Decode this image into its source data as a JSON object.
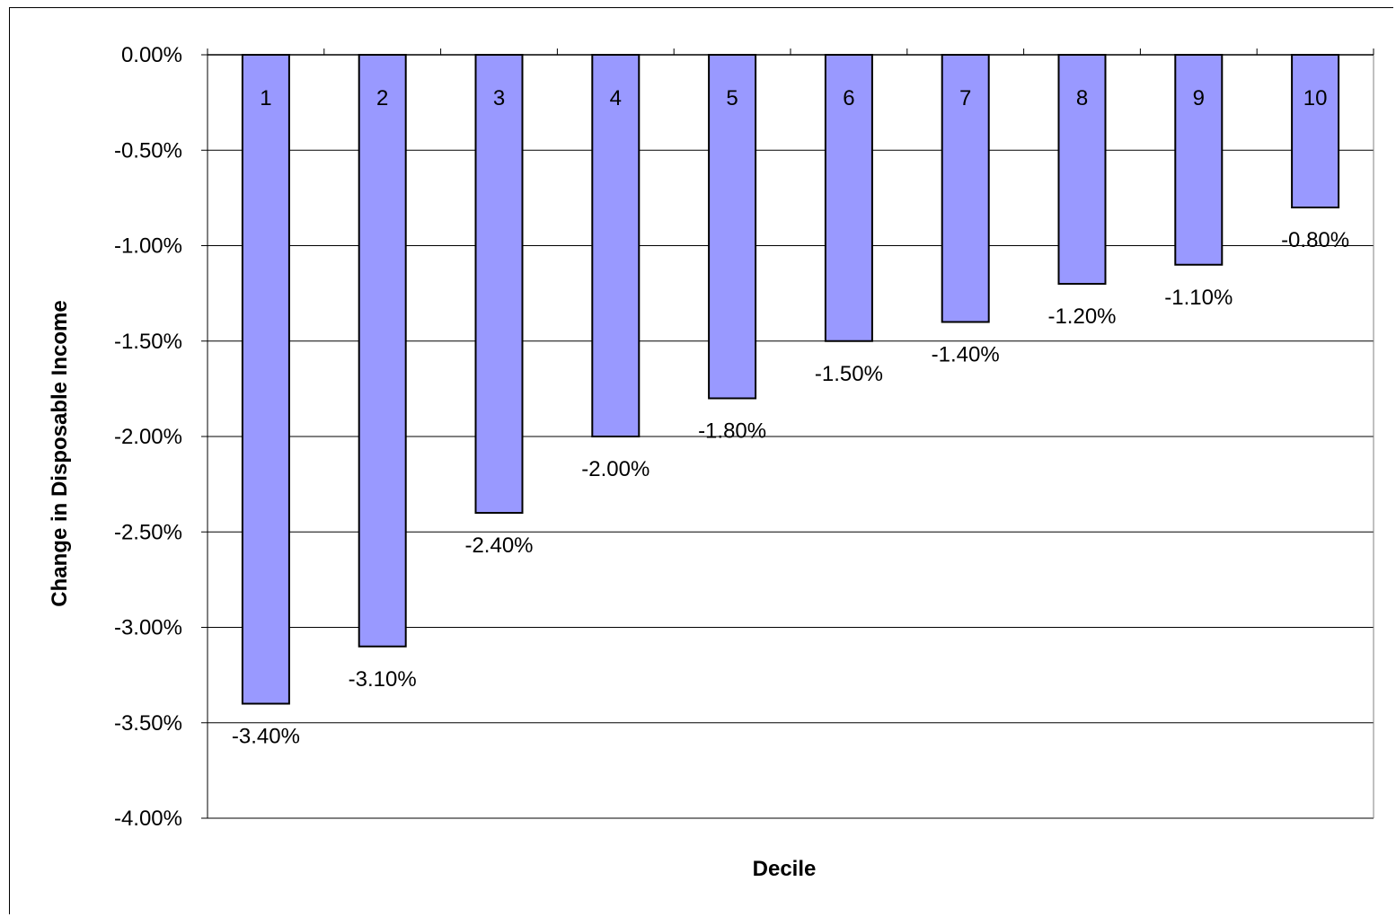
{
  "chart_data": {
    "type": "bar",
    "categories": [
      "1",
      "2",
      "3",
      "4",
      "5",
      "6",
      "7",
      "8",
      "9",
      "10"
    ],
    "values": [
      -3.4,
      -3.1,
      -2.4,
      -2.0,
      -1.8,
      -1.5,
      -1.4,
      -1.2,
      -1.1,
      -0.8
    ],
    "data_labels": [
      "-3.40%",
      "-3.10%",
      "-2.40%",
      "-2.00%",
      "-1.80%",
      "-1.50%",
      "-1.40%",
      "-1.20%",
      "-1.10%",
      "-0.80%"
    ],
    "xlabel": "Decile",
    "ylabel": "Change in Disposable Income",
    "ylim": [
      -4.0,
      0.0
    ],
    "yticks": [
      0.0,
      -0.5,
      -1.0,
      -1.5,
      -2.0,
      -2.5,
      -3.0,
      -3.5,
      -4.0
    ],
    "ytick_labels": [
      "0.00%",
      "-0.50%",
      "-1.00%",
      "-1.50%",
      "-2.00%",
      "-2.50%",
      "-3.00%",
      "-3.50%",
      "-4.00%"
    ],
    "grid": true,
    "legend": "none",
    "bar_color": "#9999ff",
    "bar_edge_color": "#000000"
  }
}
